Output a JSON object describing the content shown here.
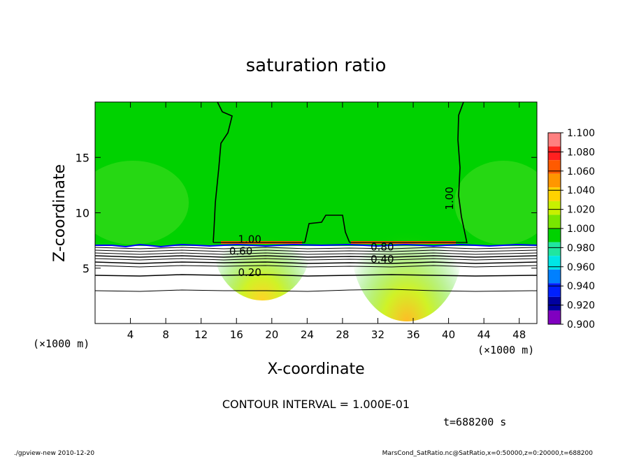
{
  "chart_data": {
    "type": "heatmap",
    "title": "saturation ratio",
    "xlabel": "X-coordinate",
    "ylabel": "Z-coordinate",
    "x_unit_left": "(×1000 m)",
    "x_unit_right": "(×1000 m)",
    "xlim": [
      0,
      50
    ],
    "ylim": [
      0,
      20
    ],
    "x_ticks": [
      "4",
      "8",
      "12",
      "16",
      "20",
      "24",
      "28",
      "32",
      "36",
      "40",
      "44",
      "48"
    ],
    "y_ticks": [
      "5",
      "10",
      "15"
    ],
    "colorbar": {
      "levels": [
        "1.100",
        "1.080",
        "1.060",
        "1.040",
        "1.020",
        "1.000",
        "0.980",
        "0.960",
        "0.940",
        "0.920",
        "0.900"
      ],
      "colors": [
        "#ff8080",
        "#ff2020",
        "#ff5a00",
        "#ff9600",
        "#ffd200",
        "#c8f000",
        "#78e600",
        "#00d200",
        "#20e6a0",
        "#00e6e6",
        "#0080ff",
        "#0020ff",
        "#0000a0",
        "#8000c0"
      ]
    },
    "contours": [
      {
        "label": "1.00",
        "x": 40.5,
        "z": 11.3
      },
      {
        "label": "1.00",
        "x": 17.5,
        "z": 7.3
      },
      {
        "label": "0.60",
        "x": 16.5,
        "z": 6.2
      },
      {
        "label": "0.80",
        "x": 32.5,
        "z": 6.6
      },
      {
        "label": "0.40",
        "x": 32.5,
        "z": 5.5
      },
      {
        "label": "0.20",
        "x": 17.5,
        "z": 4.3
      }
    ],
    "contour_interval_label": "CONTOUR INTERVAL = 1.000E-01",
    "time_label": "t=688200 s"
  },
  "footer": {
    "left": "./gpview-new  2010-12-20",
    "right": "MarsCond_SatRatio.nc@SatRatio,x=0:50000,z=0:20000,t=688200"
  }
}
